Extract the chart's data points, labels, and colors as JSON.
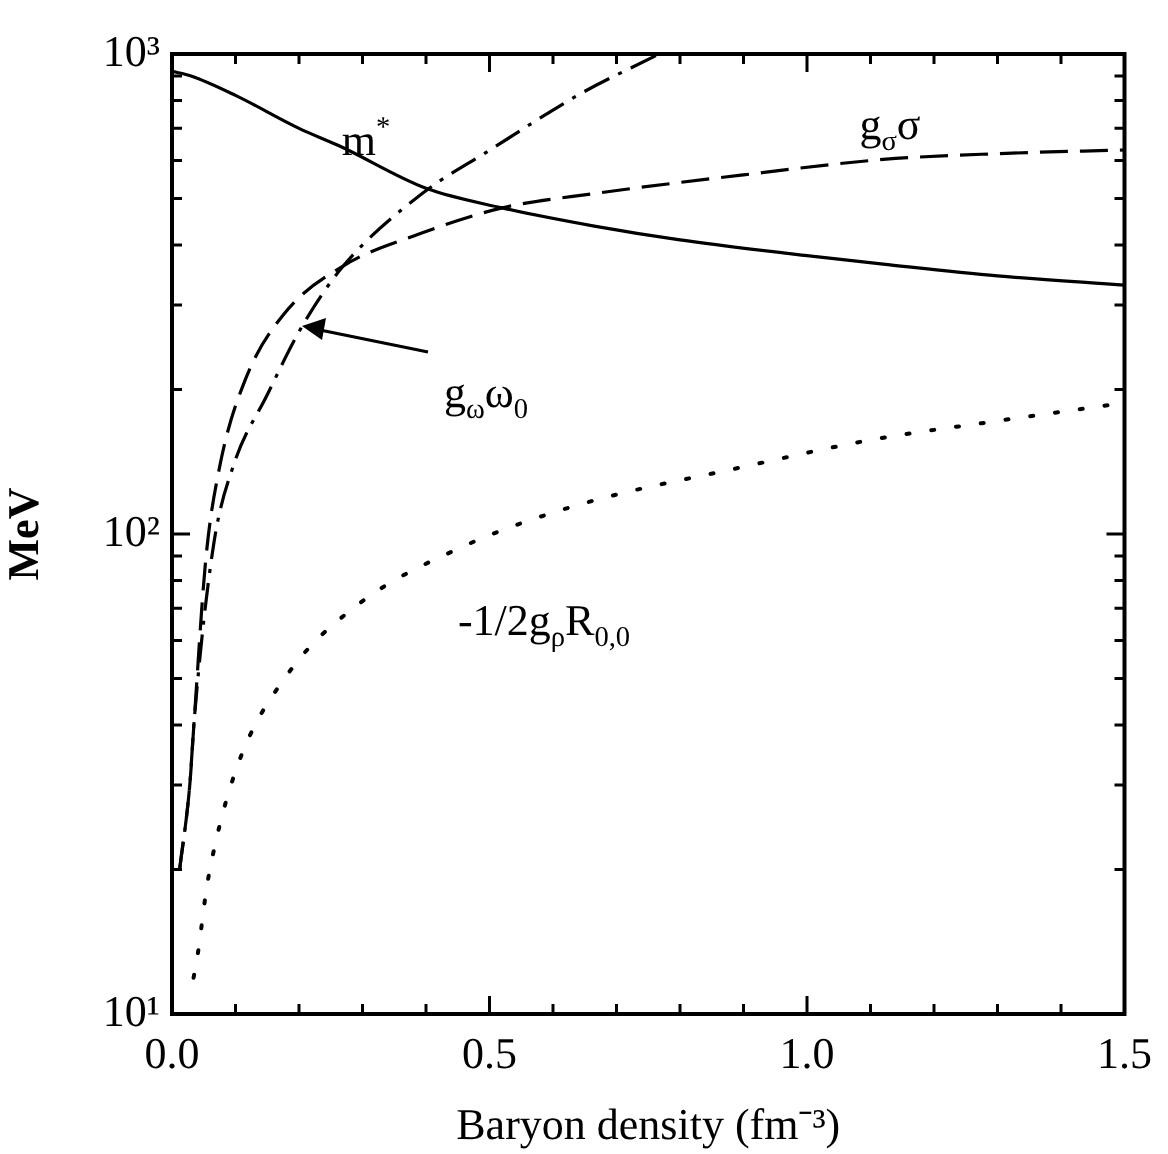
{
  "chart_data": {
    "type": "line",
    "xlabel": "Baryon density (fm⁻³)",
    "ylabel": "MeV",
    "log": "y",
    "grid": false,
    "legend": false,
    "marker": "none",
    "xlim": [
      0,
      1.5
    ],
    "ylim": [
      10,
      1000
    ],
    "xticks": [
      {
        "value": 0,
        "label": "0.0"
      },
      {
        "value": 0.1,
        "label": null
      },
      {
        "value": 0.2,
        "label": null
      },
      {
        "value": 0.3,
        "label": null
      },
      {
        "value": 0.4,
        "label": null
      },
      0.5,
      {
        "value": 0.6,
        "label": null
      },
      {
        "value": 0.7,
        "label": null
      },
      {
        "value": 0.8,
        "label": null
      },
      {
        "value": 0.9,
        "label": null
      },
      {
        "value": 1,
        "label": "1.0"
      },
      {
        "value": 1.1,
        "label": null
      },
      {
        "value": 1.2,
        "label": null
      },
      {
        "value": 1.3,
        "label": null
      },
      {
        "value": 1.4,
        "label": null
      },
      1.5
    ],
    "yticks": [
      {
        "value": 10,
        "label": "10¹"
      },
      {
        "value": 20,
        "label": null
      },
      {
        "value": 30,
        "label": null
      },
      {
        "value": 40,
        "label": null
      },
      {
        "value": 50,
        "label": null
      },
      {
        "value": 60,
        "label": null
      },
      {
        "value": 70,
        "label": null
      },
      {
        "value": 80,
        "label": null
      },
      {
        "value": 90,
        "label": null
      },
      {
        "value": 100,
        "label": "10²"
      },
      {
        "value": 200,
        "label": null
      },
      {
        "value": 300,
        "label": null
      },
      {
        "value": 400,
        "label": null
      },
      {
        "value": 500,
        "label": null
      },
      {
        "value": 600,
        "label": null
      },
      {
        "value": 700,
        "label": null
      },
      {
        "value": 800,
        "label": null
      },
      {
        "value": 900,
        "label": null
      },
      {
        "value": 1000,
        "label": "10³"
      }
    ],
    "series": [
      {
        "color": "#000000",
        "line_style": "solid",
        "x": [
          0,
          0.03,
          0.1,
          0.2,
          0.264,
          0.4,
          0.52,
          0.665,
          0.8,
          1.0,
          1.12,
          1.3,
          1.5
        ],
        "values": [
          920,
          900,
          820,
          700,
          643,
          525,
          478,
          438,
          410,
          380,
          365,
          345,
          330
        ]
      },
      {
        "color": "#000000",
        "line_style": "dashed",
        "x": [
          0.012,
          0.028,
          0.035,
          0.053,
          0.075,
          0.115,
          0.177,
          0.27,
          0.39,
          0.52,
          0.665,
          0.9,
          1.12,
          1.3,
          1.5
        ],
        "values": [
          20,
          30,
          41,
          88,
          138,
          209,
          288,
          362,
          422,
          478,
          512,
          560,
          603,
          620,
          631
        ]
      },
      {
        "color": "#000000",
        "line_style": "dashdot",
        "x": [
          0.012,
          0.028,
          0.035,
          0.065,
          0.096,
          0.15,
          0.205,
          0.27,
          0.394,
          0.5,
          0.643,
          0.767
        ],
        "values": [
          20,
          30,
          41,
          94,
          138,
          195,
          271,
          362,
          512,
          630,
          826,
          1000
        ]
      },
      {
        "color": "#000000",
        "line_style": "dotted",
        "x": [
          0.034,
          0.043,
          0.05,
          0.059,
          0.102,
          0.18,
          0.29,
          0.457,
          0.64,
          0.9,
          1.1,
          1.3,
          1.48
        ],
        "values": [
          11.9,
          14,
          16.6,
          19.8,
          32.6,
          50.6,
          70.8,
          94,
          115,
          138,
          157,
          172,
          186
        ]
      }
    ],
    "annotations": [
      "m$^{*}$",
      "g$_{σ}$σ",
      "g$_{ω}$ω$_{0}$",
      "-1/2g$_{ρ}$R$_{0,0}$"
    ]
  }
}
